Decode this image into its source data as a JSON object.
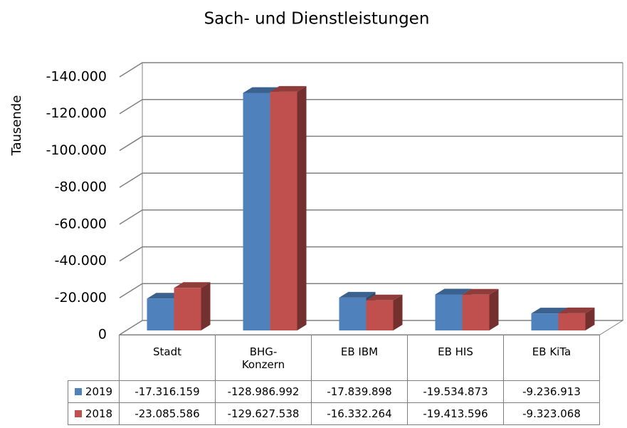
{
  "chart_data": {
    "type": "bar3d",
    "title": "Sach- und Dienstleistungen",
    "y_label": "Tausende",
    "categories": [
      "Stadt",
      "BHG-Konzern",
      "EB IBM",
      "EB HIS",
      "EB KiTa"
    ],
    "series": [
      {
        "name": "2019",
        "color": "#4f81bd",
        "values": [
          -17316.159,
          -128986.992,
          -17839.898,
          -19534.873,
          -9236.913
        ],
        "value_labels": [
          "-17.316.159",
          "-128.986.992",
          "-17.839.898",
          "-19.534.873",
          "-9.236.913"
        ]
      },
      {
        "name": "2018",
        "color": "#c0504d",
        "values": [
          -23085.586,
          -129627.538,
          -16332.264,
          -19413.596,
          -9323.068
        ],
        "value_labels": [
          "-23.085.586",
          "-129.627.538",
          "-16.332.264",
          "-19.413.596",
          "-9.323.068"
        ]
      }
    ],
    "ylim": [
      0,
      -140000
    ],
    "yticks": [
      0,
      {
        "value": -20000,
        "label": "-20.000"
      },
      {
        "value": -40000,
        "label": "-40.000"
      },
      {
        "value": -60000,
        "label": "-60.000"
      },
      {
        "value": -80000,
        "label": "-80.000"
      },
      {
        "value": -100000,
        "label": "-100.000"
      },
      {
        "value": -120000,
        "label": "-120.000"
      },
      {
        "value": -140000,
        "label": "-140.000"
      }
    ],
    "grid": true,
    "data_table": true
  }
}
